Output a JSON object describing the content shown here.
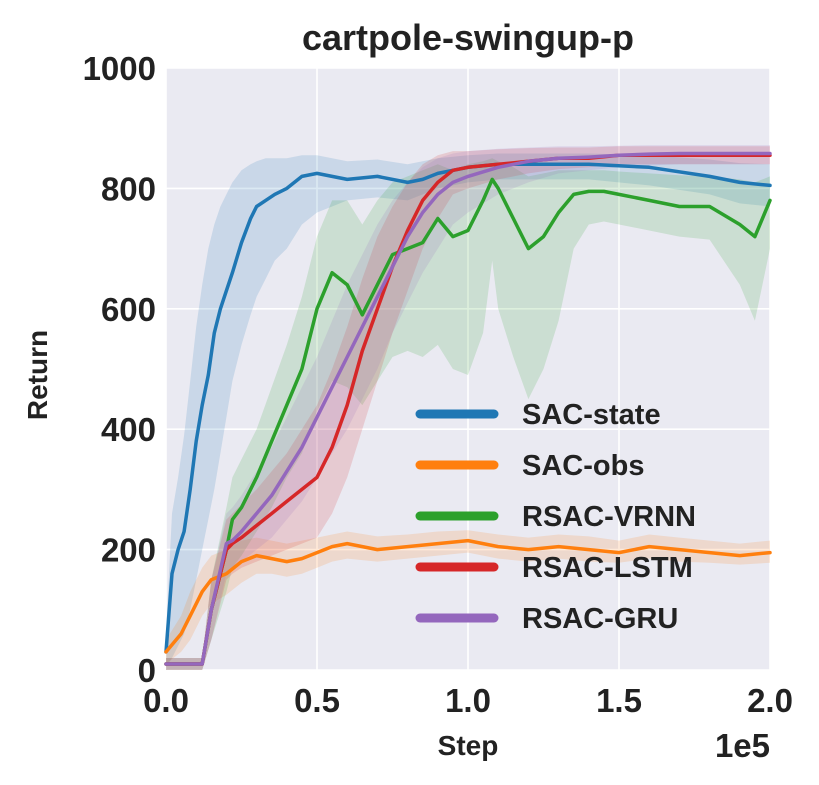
{
  "chart_data": {
    "type": "line",
    "title": "cartpole-swingup-p",
    "xlabel": "Step",
    "ylabel": "Return",
    "x_offset_label": "1e5",
    "xlim": [
      0,
      2.0
    ],
    "ylim": [
      0,
      1000
    ],
    "xticks": [
      0.0,
      0.5,
      1.0,
      1.5,
      2.0
    ],
    "xtick_labels": [
      "0.0",
      "0.5",
      "1.0",
      "1.5",
      "2.0"
    ],
    "yticks": [
      0,
      200,
      400,
      600,
      800,
      1000
    ],
    "ytick_labels": [
      "0",
      "200",
      "400",
      "600",
      "800",
      "1000"
    ],
    "grid": true,
    "legend_position": "lower-right",
    "series": [
      {
        "name": "SAC-state",
        "color": "#1f77b4",
        "x": [
          0.0,
          0.02,
          0.04,
          0.06,
          0.08,
          0.1,
          0.12,
          0.14,
          0.16,
          0.18,
          0.2,
          0.22,
          0.25,
          0.28,
          0.3,
          0.33,
          0.36,
          0.4,
          0.45,
          0.5,
          0.55,
          0.6,
          0.7,
          0.8,
          0.85,
          0.9,
          1.0,
          1.1,
          1.2,
          1.4,
          1.6,
          1.8,
          1.9,
          2.0
        ],
        "y": [
          30,
          160,
          200,
          230,
          300,
          380,
          440,
          490,
          560,
          600,
          630,
          660,
          710,
          750,
          770,
          780,
          790,
          800,
          820,
          825,
          820,
          815,
          820,
          810,
          815,
          825,
          835,
          840,
          840,
          840,
          835,
          820,
          810,
          805
        ],
        "lower": [
          5,
          20,
          40,
          60,
          100,
          150,
          200,
          250,
          300,
          360,
          420,
          480,
          540,
          590,
          620,
          650,
          680,
          700,
          740,
          760,
          770,
          780,
          785,
          780,
          790,
          800,
          810,
          815,
          815,
          815,
          805,
          790,
          775,
          770
        ],
        "upper": [
          60,
          260,
          320,
          390,
          480,
          570,
          640,
          700,
          740,
          770,
          790,
          810,
          830,
          840,
          845,
          850,
          850,
          850,
          855,
          855,
          850,
          845,
          848,
          840,
          845,
          850,
          855,
          858,
          858,
          858,
          855,
          848,
          842,
          840
        ]
      },
      {
        "name": "SAC-obs",
        "color": "#ff7f0e",
        "x": [
          0.0,
          0.05,
          0.08,
          0.1,
          0.12,
          0.15,
          0.2,
          0.25,
          0.3,
          0.35,
          0.4,
          0.45,
          0.5,
          0.55,
          0.6,
          0.7,
          0.8,
          0.9,
          1.0,
          1.1,
          1.2,
          1.3,
          1.4,
          1.5,
          1.6,
          1.7,
          1.8,
          1.9,
          2.0
        ],
        "y": [
          30,
          60,
          90,
          110,
          130,
          150,
          160,
          180,
          190,
          185,
          180,
          185,
          195,
          205,
          210,
          200,
          205,
          210,
          215,
          205,
          200,
          205,
          200,
          195,
          205,
          200,
          195,
          190,
          195
        ],
        "lower": [
          10,
          30,
          50,
          70,
          90,
          110,
          125,
          145,
          160,
          160,
          155,
          160,
          170,
          180,
          185,
          180,
          185,
          190,
          195,
          185,
          180,
          185,
          180,
          178,
          185,
          180,
          178,
          175,
          178
        ],
        "upper": [
          50,
          90,
          130,
          150,
          170,
          190,
          200,
          215,
          220,
          215,
          210,
          215,
          220,
          225,
          230,
          222,
          225,
          230,
          232,
          225,
          220,
          225,
          222,
          215,
          225,
          220,
          215,
          210,
          215
        ]
      },
      {
        "name": "RSAC-VRNN",
        "color": "#2ca02c",
        "x": [
          0.0,
          0.1,
          0.12,
          0.15,
          0.2,
          0.22,
          0.25,
          0.3,
          0.35,
          0.4,
          0.45,
          0.5,
          0.55,
          0.6,
          0.65,
          0.7,
          0.75,
          0.8,
          0.85,
          0.9,
          0.95,
          1.0,
          1.05,
          1.08,
          1.1,
          1.15,
          1.2,
          1.25,
          1.3,
          1.35,
          1.4,
          1.45,
          1.5,
          1.6,
          1.7,
          1.8,
          1.9,
          1.95,
          2.0
        ],
        "y": [
          10,
          10,
          10,
          100,
          200,
          250,
          270,
          320,
          380,
          440,
          500,
          600,
          660,
          640,
          590,
          640,
          690,
          700,
          710,
          750,
          720,
          730,
          780,
          815,
          800,
          750,
          700,
          720,
          760,
          790,
          795,
          795,
          790,
          780,
          770,
          770,
          740,
          720,
          780
        ],
        "lower": [
          0,
          0,
          0,
          50,
          130,
          170,
          190,
          230,
          270,
          320,
          360,
          430,
          480,
          470,
          440,
          480,
          520,
          530,
          520,
          540,
          500,
          490,
          560,
          680,
          600,
          520,
          450,
          500,
          580,
          700,
          740,
          745,
          740,
          730,
          720,
          715,
          640,
          580,
          700
        ],
        "upper": [
          20,
          20,
          20,
          150,
          270,
          320,
          350,
          400,
          470,
          540,
          620,
          720,
          780,
          780,
          740,
          780,
          810,
          820,
          830,
          840,
          830,
          840,
          845,
          850,
          845,
          835,
          820,
          825,
          830,
          830,
          830,
          830,
          828,
          825,
          822,
          820,
          815,
          810,
          820
        ]
      },
      {
        "name": "RSAC-LSTM",
        "color": "#d62728",
        "x": [
          0.0,
          0.1,
          0.12,
          0.15,
          0.2,
          0.22,
          0.25,
          0.3,
          0.35,
          0.4,
          0.45,
          0.5,
          0.55,
          0.6,
          0.65,
          0.7,
          0.75,
          0.8,
          0.85,
          0.9,
          0.95,
          1.0,
          1.1,
          1.2,
          1.3,
          1.4,
          1.5,
          1.6,
          1.7,
          1.8,
          1.9,
          2.0
        ],
        "y": [
          10,
          10,
          10,
          100,
          200,
          210,
          220,
          240,
          260,
          280,
          300,
          320,
          370,
          440,
          530,
          600,
          670,
          730,
          780,
          810,
          830,
          835,
          840,
          845,
          850,
          850,
          855,
          855,
          855,
          855,
          855,
          855
        ],
        "lower": [
          0,
          0,
          0,
          50,
          150,
          160,
          170,
          180,
          190,
          200,
          210,
          220,
          260,
          320,
          400,
          480,
          560,
          630,
          700,
          750,
          790,
          800,
          815,
          825,
          832,
          835,
          840,
          840,
          840,
          840,
          840,
          840
        ],
        "upper": [
          20,
          20,
          20,
          150,
          250,
          260,
          275,
          300,
          330,
          360,
          400,
          440,
          500,
          570,
          650,
          720,
          770,
          810,
          840,
          855,
          862,
          862,
          865,
          867,
          868,
          868,
          870,
          870,
          870,
          870,
          870,
          870
        ]
      },
      {
        "name": "RSAC-GRU",
        "color": "#9467bd",
        "x": [
          0.0,
          0.1,
          0.12,
          0.15,
          0.2,
          0.22,
          0.25,
          0.3,
          0.35,
          0.4,
          0.45,
          0.5,
          0.55,
          0.6,
          0.65,
          0.7,
          0.75,
          0.8,
          0.85,
          0.9,
          0.95,
          1.0,
          1.1,
          1.2,
          1.3,
          1.4,
          1.5,
          1.6,
          1.7,
          1.8,
          1.9,
          2.0
        ],
        "y": [
          10,
          10,
          10,
          100,
          210,
          215,
          230,
          260,
          290,
          330,
          370,
          420,
          470,
          520,
          570,
          620,
          670,
          720,
          760,
          790,
          810,
          820,
          835,
          845,
          850,
          852,
          855,
          857,
          858,
          858,
          858,
          858
        ],
        "lower": [
          0,
          0,
          0,
          50,
          160,
          170,
          180,
          200,
          220,
          250,
          280,
          320,
          360,
          400,
          450,
          500,
          560,
          610,
          660,
          700,
          740,
          760,
          790,
          810,
          825,
          830,
          835,
          838,
          840,
          840,
          840,
          840
        ],
        "upper": [
          20,
          20,
          20,
          150,
          260,
          270,
          290,
          330,
          370,
          420,
          470,
          520,
          580,
          640,
          690,
          740,
          780,
          810,
          835,
          850,
          858,
          862,
          866,
          868,
          870,
          870,
          871,
          872,
          872,
          872,
          872,
          872
        ]
      }
    ]
  }
}
